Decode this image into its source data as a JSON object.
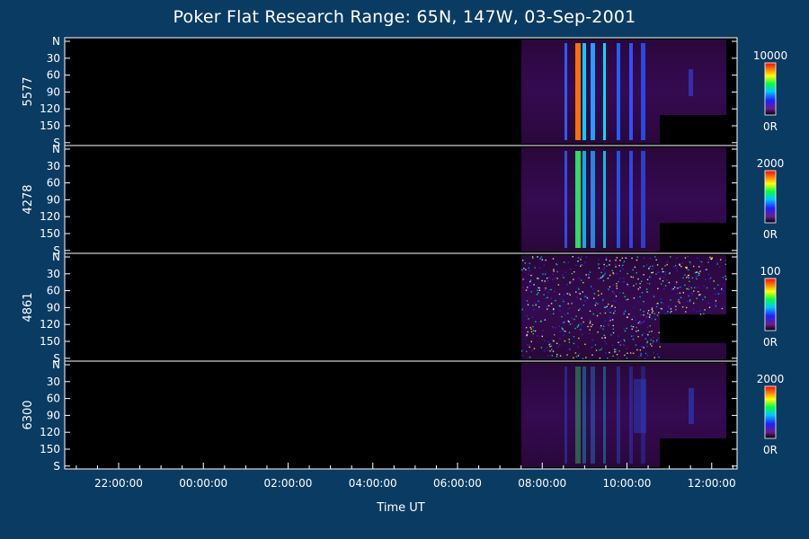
{
  "title": "Poker Flat Research Range: 65N, 147W, 03-Sep-2001",
  "chart_data": [
    {
      "type": "heatmap",
      "panel_label": "5577",
      "colorbar": {
        "max": "10000",
        "min": "0R"
      },
      "y_ticks": [
        "N",
        "30",
        "60",
        "90",
        "120",
        "150",
        "S"
      ]
    },
    {
      "type": "heatmap",
      "panel_label": "4278",
      "colorbar": {
        "max": "2000",
        "min": "0R"
      },
      "y_ticks": [
        "N",
        "30",
        "60",
        "90",
        "120",
        "150",
        "S"
      ]
    },
    {
      "type": "heatmap",
      "panel_label": "4861",
      "colorbar": {
        "max": "100",
        "min": "0R"
      },
      "y_ticks": [
        "N",
        "30",
        "60",
        "90",
        "120",
        "150",
        "S"
      ]
    },
    {
      "type": "heatmap",
      "panel_label": "6300",
      "colorbar": {
        "max": "2000",
        "min": "0R"
      },
      "y_ticks": [
        "N",
        "30",
        "60",
        "90",
        "120",
        "150",
        "S"
      ]
    }
  ],
  "x_axis": {
    "label": "Time UT",
    "ticks": [
      "22:00:00",
      "00:00:00",
      "02:00:00",
      "04:00:00",
      "06:00:00",
      "08:00:00",
      "10:00:00",
      "12:00:00"
    ]
  },
  "colors": {
    "background": "#0a3b62",
    "plot_area": "#000000",
    "axes": "#ffffff"
  }
}
